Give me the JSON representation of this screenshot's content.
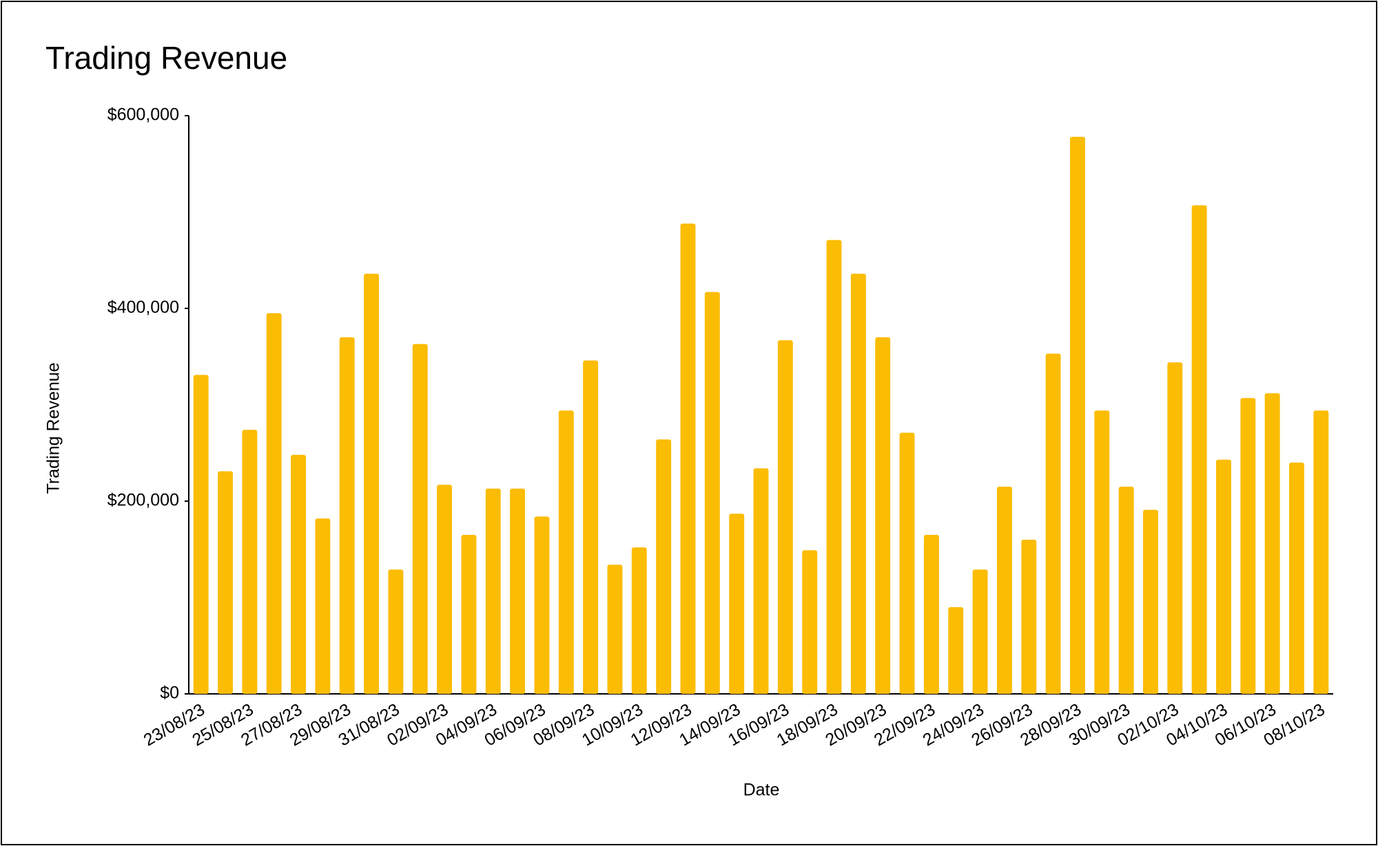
{
  "chart_data": {
    "type": "bar",
    "title": "Trading Revenue",
    "x_label": "Date",
    "y_label": "Trading Revenue",
    "categories": [
      "23/08/23",
      null,
      "25/08/23",
      null,
      "27/08/23",
      null,
      "29/08/23",
      null,
      "31/08/23",
      null,
      "02/09/23",
      null,
      "04/09/23",
      null,
      "06/09/23",
      null,
      "08/09/23",
      null,
      "10/09/23",
      null,
      "12/09/23",
      null,
      "14/09/23",
      null,
      "16/09/23",
      null,
      "18/09/23",
      null,
      "20/09/23",
      null,
      "22/09/23",
      null,
      "24/09/23",
      null,
      "26/09/23",
      null,
      "28/09/23",
      null,
      "30/09/23",
      null,
      "02/10/23",
      null,
      "04/10/23",
      null,
      "06/10/23",
      null,
      "08/10/23"
    ],
    "values": [
      331000,
      231000,
      274000,
      395000,
      248000,
      182000,
      370000,
      436000,
      129000,
      363000,
      217000,
      165000,
      213000,
      213000,
      184000,
      294000,
      346000,
      134000,
      152000,
      264000,
      488000,
      417000,
      187000,
      234000,
      367000,
      149000,
      471000,
      436000,
      370000,
      271000,
      165000,
      90000,
      129000,
      215000,
      160000,
      353000,
      578000,
      294000,
      215000,
      191000,
      344000,
      507000,
      243000,
      307000,
      312000,
      240000,
      294000
    ],
    "color": "#fbbc04",
    "ylim": [
      0,
      600000
    ],
    "yticks": [
      {
        "value": 0,
        "label": "$0"
      },
      {
        "value": 200000,
        "label": "$200,000"
      },
      {
        "value": 400000,
        "label": "$400,000"
      },
      {
        "value": 600000,
        "label": "$600,000"
      }
    ],
    "grid": false
  }
}
